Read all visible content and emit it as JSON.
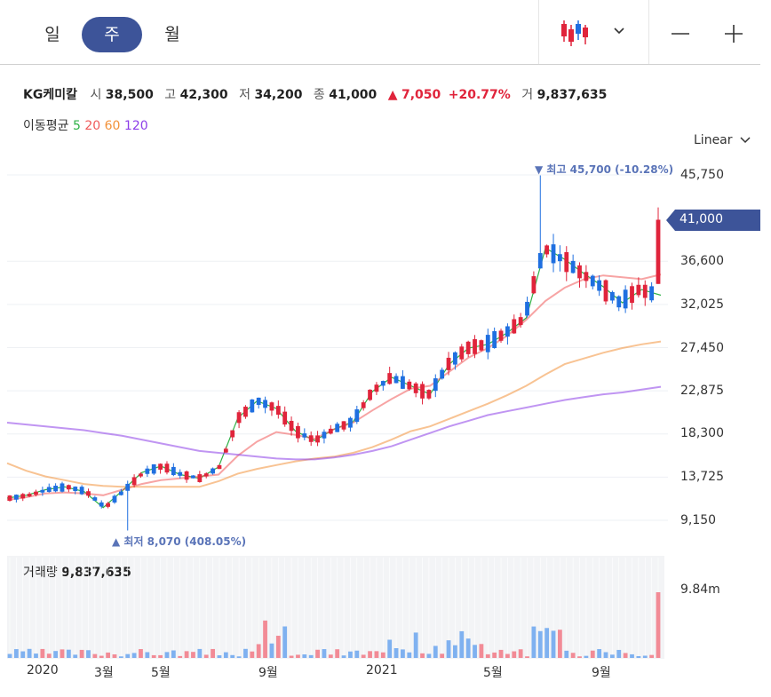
{
  "periods": [
    {
      "id": "day",
      "label": "일"
    },
    {
      "id": "week",
      "label": "주"
    },
    {
      "id": "month",
      "label": "월"
    }
  ],
  "active_period": "week",
  "stock": {
    "name": "KG케미칼",
    "open_label": "시",
    "open": "38,500",
    "high_label": "고",
    "high": "42,300",
    "low_label": "저",
    "low": "34,200",
    "close_label": "종",
    "close": "41,000",
    "change_arrow": "▲",
    "change": "7,050",
    "change_pct": "+20.77%",
    "volume_label": "거",
    "volume": "9,837,635"
  },
  "moving_average": {
    "label": "이동평균",
    "periods": [
      {
        "value": "5",
        "color": "#2fb247"
      },
      {
        "value": "20",
        "color": "#f05a5a"
      },
      {
        "value": "60",
        "color": "#f3923a"
      },
      {
        "value": "120",
        "color": "#8d3ee8"
      }
    ]
  },
  "scale_mode": "Linear",
  "annotations": {
    "high": "▼ 최고 45,700 (-10.28%)",
    "low": "▲ 최저 8,070 (408.05%)"
  },
  "current_price_tag": "41,000",
  "price_axis": [
    "45,750",
    "36,600",
    "32,025",
    "27,450",
    "22,875",
    "18,300",
    "13,725",
    "9,150"
  ],
  "volume_panel": {
    "label": "거래량",
    "value": "9,837,635",
    "axis_label": "9.84m"
  },
  "time_axis": [
    "2020",
    "3월",
    "5월",
    "9월",
    "2021",
    "5월",
    "9월"
  ],
  "colors": {
    "up": "#e0243b",
    "down": "#1f6fe0",
    "accent": "#3d5499"
  },
  "chart_data": {
    "type": "candlestick",
    "period": "weekly",
    "y_axis_ticks": [
      45750,
      41000,
      36600,
      32025,
      27450,
      22875,
      18300,
      13725,
      9150
    ],
    "ylim": [
      6000,
      47500
    ],
    "high": 45700,
    "low": 8070,
    "last_close": 41000,
    "series": [
      {
        "name": "5",
        "approx_values": [
          11500,
          11800,
          12400,
          12700,
          12200,
          10500,
          12300,
          14200,
          14900,
          14000,
          13600,
          14800,
          20000,
          21800,
          21000,
          18600,
          17600,
          18800,
          19600,
          22800,
          24300,
          23400,
          22500,
          25700,
          27400,
          27800,
          29000,
          30600,
          38000,
          36800,
          35300,
          33900,
          32200,
          33600,
          33000
        ]
      },
      {
        "name": "20",
        "approx_values": [
          11300,
          11600,
          12000,
          12100,
          12000,
          11800,
          12400,
          13000,
          13400,
          13600,
          13800,
          14000,
          16000,
          17500,
          18500,
          18200,
          17800,
          18800,
          19500,
          20800,
          22000,
          23100,
          23400,
          24900,
          26400,
          27400,
          28700,
          30400,
          32400,
          33800,
          34700,
          35100,
          34900,
          34700,
          35200
        ]
      },
      {
        "name": "60",
        "approx_values": [
          15200,
          14400,
          13800,
          13400,
          13000,
          12800,
          12700,
          12700,
          12700,
          12700,
          12700,
          13300,
          14100,
          14600,
          15000,
          15400,
          15700,
          15900,
          16300,
          16900,
          17700,
          18600,
          19100,
          19900,
          20700,
          21500,
          22400,
          23400,
          24600,
          25700,
          26300,
          26900,
          27400,
          27800,
          28100
        ]
      },
      {
        "name": "120",
        "approx_values": [
          19500,
          19300,
          19100,
          18900,
          18700,
          18400,
          18100,
          17700,
          17300,
          16900,
          16500,
          16300,
          16100,
          15900,
          15700,
          15600,
          15600,
          15800,
          16100,
          16500,
          17000,
          17700,
          18400,
          19100,
          19700,
          20300,
          20700,
          21100,
          21500,
          21900,
          22200,
          22500,
          22700,
          23000,
          23300
        ]
      }
    ],
    "volume_unit": "m",
    "volume_last": 9.84
  }
}
